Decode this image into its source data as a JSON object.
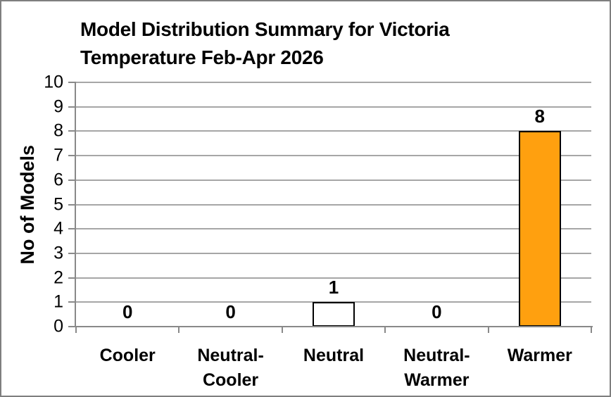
{
  "frame": {
    "background_color": "#FFFFFF",
    "border_color": "#7F7F7F"
  },
  "chart_data": {
    "type": "bar",
    "title": "Model Distribution Summary for Victoria Temperature Feb-Apr 2026",
    "title_lines": [
      "Model Distribution Summary for Victoria",
      "Temperature Feb-Apr 2026"
    ],
    "ylabel": "No of Models",
    "categories": [
      "Cooler",
      "Neutral-Cooler",
      "Neutral",
      "Neutral-Warmer",
      "Warmer"
    ],
    "values": [
      0,
      0,
      1,
      0,
      8
    ],
    "data_labels": [
      "0",
      "0",
      "1",
      "0",
      "8"
    ],
    "bar_fill_colors": [
      "#FFFFFF",
      "#FFFFFF",
      "#FFFFFF",
      "#FFFFFF",
      "#FFA00F"
    ],
    "bar_border_color": "#000000",
    "ylim": [
      0,
      10
    ],
    "yticks": [
      0,
      1,
      2,
      3,
      4,
      5,
      6,
      7,
      8,
      9,
      10
    ],
    "grid": "horizontal",
    "gridline_color": "#A6A6A6",
    "axis_color": "#898989",
    "legend": "none"
  }
}
